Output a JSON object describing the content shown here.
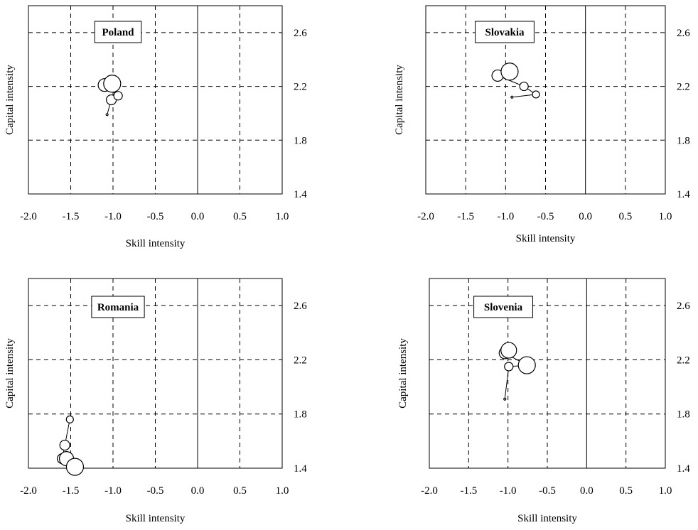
{
  "chart_data": [
    {
      "type": "scatter",
      "title": "Poland",
      "xlabel": "Skill intensity",
      "ylabel": "Capital intensity",
      "xlim": [
        -2.0,
        1.0
      ],
      "ylim": [
        1.4,
        2.8
      ],
      "xticks": [
        "-2.0",
        "-1.5",
        "-1.0",
        "-0.5",
        "0.0",
        "0.5",
        "1.0"
      ],
      "yticks": [
        "1.4",
        "1.8",
        "2.2",
        "2.6"
      ],
      "grid": true,
      "points": [
        {
          "x": -1.07,
          "y": 1.99,
          "size": 1
        },
        {
          "x": -1.02,
          "y": 2.1,
          "size": 5
        },
        {
          "x": -0.94,
          "y": 2.13,
          "size": 4
        },
        {
          "x": -1.1,
          "y": 2.21,
          "size": 7
        },
        {
          "x": -1.01,
          "y": 2.22,
          "size": 10
        }
      ]
    },
    {
      "type": "scatter",
      "title": "Slovakia",
      "xlabel": "Skill intensity",
      "ylabel": "Capital intensity",
      "xlim": [
        -2.0,
        1.0
      ],
      "ylim": [
        1.4,
        2.8
      ],
      "xticks": [
        "-2.0",
        "-1.5",
        "-1.0",
        "-0.5",
        "0.0",
        "0.5",
        "1.0"
      ],
      "yticks": [
        "1.4",
        "1.8",
        "2.2",
        "2.6"
      ],
      "grid": true,
      "points": [
        {
          "x": -0.92,
          "y": 2.12,
          "size": 1
        },
        {
          "x": -0.62,
          "y": 2.14,
          "size": 3
        },
        {
          "x": -0.77,
          "y": 2.2,
          "size": 4
        },
        {
          "x": -1.1,
          "y": 2.28,
          "size": 6
        },
        {
          "x": -0.95,
          "y": 2.31,
          "size": 10
        }
      ]
    },
    {
      "type": "scatter",
      "title": "Romania",
      "xlabel": "Skill intensity",
      "ylabel": "Capital intensity",
      "xlim": [
        -2.0,
        1.0
      ],
      "ylim": [
        1.4,
        2.8
      ],
      "xticks": [
        "-2.0",
        "-1.5",
        "-1.0",
        "-0.5",
        "0.0",
        "0.5",
        "1.0"
      ],
      "yticks": [
        "1.4",
        "1.8",
        "2.2",
        "2.6"
      ],
      "grid": true,
      "points": [
        {
          "x": -1.51,
          "y": 1.76,
          "size": 3
        },
        {
          "x": -1.57,
          "y": 1.57,
          "size": 5
        },
        {
          "x": -1.6,
          "y": 1.47,
          "size": 5
        },
        {
          "x": -1.55,
          "y": 1.47,
          "size": 8
        },
        {
          "x": -1.45,
          "y": 1.41,
          "size": 10
        }
      ]
    },
    {
      "type": "scatter",
      "title": "Slovenia",
      "xlabel": "Skill intensity",
      "ylabel": "Capital intensity",
      "xlim": [
        -2.0,
        1.0
      ],
      "ylim": [
        1.4,
        2.8
      ],
      "xticks": [
        "-2.0",
        "-1.5",
        "-1.0",
        "-0.5",
        "0.0",
        "0.5",
        "1.0"
      ],
      "yticks": [
        "1.4",
        "1.8",
        "2.2",
        "2.6"
      ],
      "grid": true,
      "points": [
        {
          "x": -1.04,
          "y": 1.91,
          "size": 1
        },
        {
          "x": -0.99,
          "y": 2.15,
          "size": 4
        },
        {
          "x": -0.76,
          "y": 2.16,
          "size": 10
        },
        {
          "x": -1.04,
          "y": 2.25,
          "size": 6
        },
        {
          "x": -0.99,
          "y": 2.27,
          "size": 9
        }
      ]
    }
  ]
}
